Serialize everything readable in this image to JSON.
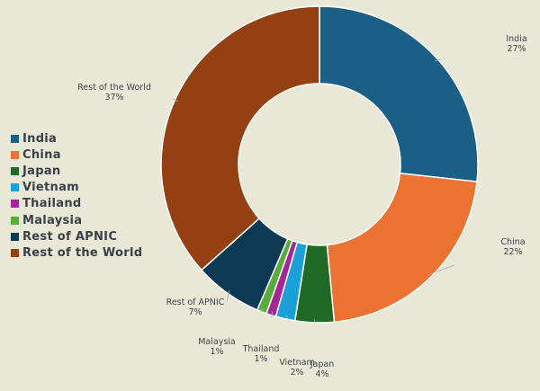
{
  "chart_data": {
    "type": "pie",
    "donut": true,
    "series": [
      {
        "name": "India",
        "value": 27,
        "label": "27%",
        "color": "#1a5f86"
      },
      {
        "name": "China",
        "value": 22,
        "label": "22%",
        "color": "#ec7232"
      },
      {
        "name": "Japan",
        "value": 4,
        "label": "4%",
        "color": "#1f6b26"
      },
      {
        "name": "Vietnam",
        "value": 2,
        "label": "2%",
        "color": "#1aa1da"
      },
      {
        "name": "Thailand",
        "value": 1,
        "label": "1%",
        "color": "#a6259b"
      },
      {
        "name": "Malaysia",
        "value": 1,
        "label": "1%",
        "color": "#56ad37"
      },
      {
        "name": "Rest of APNIC",
        "value": 7,
        "label": "7%",
        "color": "#0c3a52"
      },
      {
        "name": "Rest of the World",
        "value": 37,
        "label": "37%",
        "color": "#954012"
      }
    ],
    "legend_position": "left"
  }
}
